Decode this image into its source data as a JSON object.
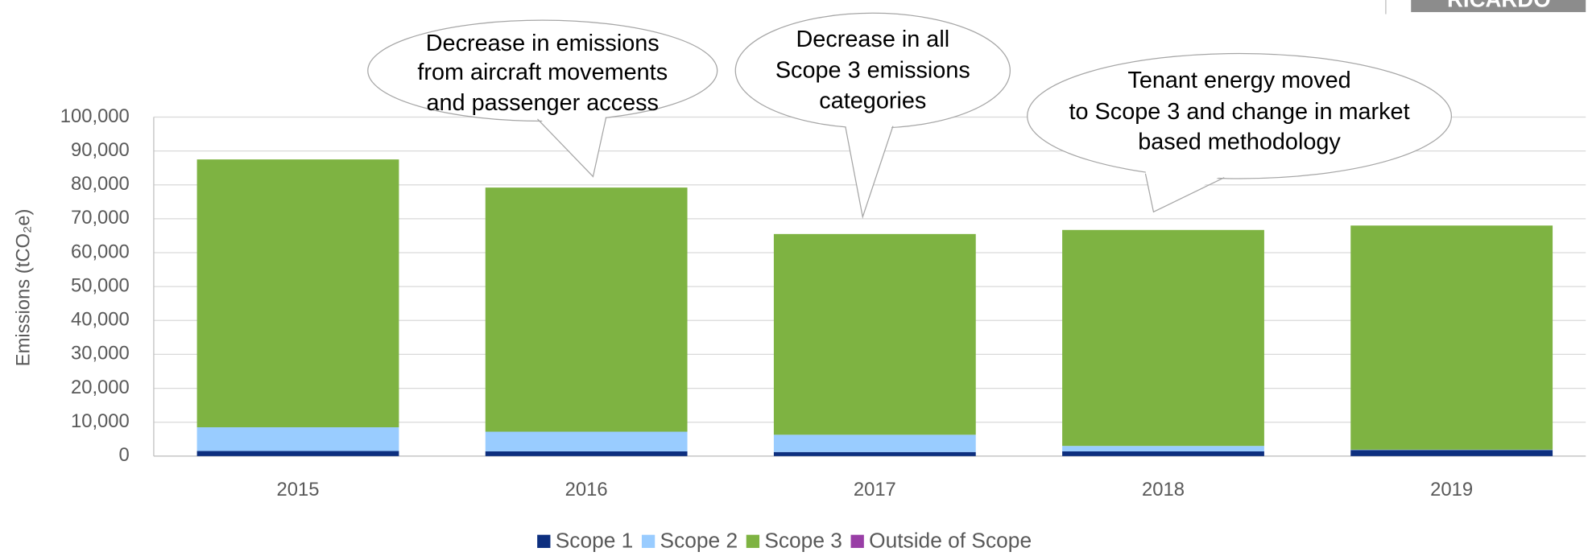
{
  "chart_data": {
    "type": "stacked_bar",
    "y_label": "Emissions (tCO₂e)",
    "logo": "RICARDO",
    "categories": [
      "2015",
      "2016",
      "2017",
      "2018",
      "2019"
    ],
    "series": [
      {
        "name": "Scope 1",
        "color": "#0d2f7f",
        "values": [
          1500,
          1400,
          1200,
          1400,
          1800
        ]
      },
      {
        "name": "Scope 2",
        "color": "#99ccff",
        "values": [
          7000,
          5800,
          5100,
          1600,
          100
        ]
      },
      {
        "name": "Scope 3",
        "color": "#7eb342",
        "values": [
          79000,
          72000,
          59200,
          63700,
          66100
        ]
      },
      {
        "name": "Outside of Scope",
        "color": "#993ea6",
        "values": [
          0,
          0,
          0,
          0,
          0
        ]
      }
    ],
    "ylim": [
      0,
      100000
    ],
    "yticks": [
      0,
      {
        "value": 10000,
        "label": "10,000"
      },
      {
        "value": 20000,
        "label": "20,000"
      },
      {
        "value": 30000,
        "label": "30,000"
      },
      {
        "value": 40000,
        "label": "40,000"
      },
      {
        "value": 50000,
        "label": "50,000"
      },
      {
        "value": 60000,
        "label": "60,000"
      },
      {
        "value": 70000,
        "label": "70,000"
      },
      {
        "value": 80000,
        "label": "80,000"
      },
      {
        "value": 90000,
        "label": "90,000"
      },
      {
        "value": 100000,
        "label": "100,000"
      }
    ],
    "grid": true,
    "legend": "bottom",
    "annotations": [
      {
        "lines": [
          "Decrease in emissions",
          "from aircraft movements",
          "and passenger access"
        ]
      },
      {
        "lines": [
          "Decrease in all",
          "Scope 3 emissions",
          "categories"
        ]
      },
      {
        "lines": [
          "Tenant energy moved",
          "to Scope 3 and change in market",
          "based methodology"
        ]
      }
    ]
  }
}
